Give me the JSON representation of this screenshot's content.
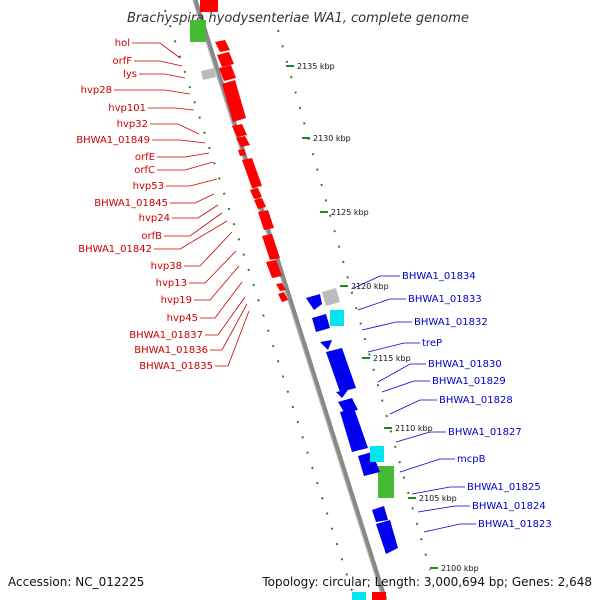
{
  "title": "Brachyspira hyodysenteriae WA1, complete genome",
  "accession": "Accession: NC_012225",
  "topology": "Topology: circular; Length: 3,000,694 bp; Genes: 2,648",
  "left_labels": [
    "hol",
    "orfF",
    "lys",
    "hvp28",
    "hvp101",
    "hvp32",
    "BHWA1_01849",
    "orfE",
    "orfC",
    "hvp53",
    "BHWA1_01845",
    "hvp24",
    "orfB",
    "BHWA1_01842",
    "hvp38",
    "hvp13",
    "hvp19",
    "hvp45",
    "BHWA1_01837",
    "BHWA1_01836",
    "BHWA1_01835"
  ],
  "right_labels": [
    "BHWA1_01834",
    "BHWA1_01833",
    "BHWA1_01832",
    "treP",
    "BHWA1_01830",
    "BHWA1_01829",
    "BHWA1_01828",
    "BHWA1_01827",
    "mcpB",
    "BHWA1_01825",
    "BHWA1_01824",
    "BHWA1_01823"
  ],
  "ticks": [
    "2135 kbp",
    "2130 kbp",
    "2125 kbp",
    "2120 kbp",
    "2115 kbp",
    "2110 kbp",
    "2105 kbp",
    "2100 kbp"
  ],
  "colors": {
    "forward_gene": "#ff0000",
    "reverse_gene": "#0000ee",
    "rna": "#00e5ee",
    "green_feature": "#44bb33",
    "pseudo": "#bbbbbb",
    "backbone": "#888888",
    "ruler": "#228822"
  }
}
